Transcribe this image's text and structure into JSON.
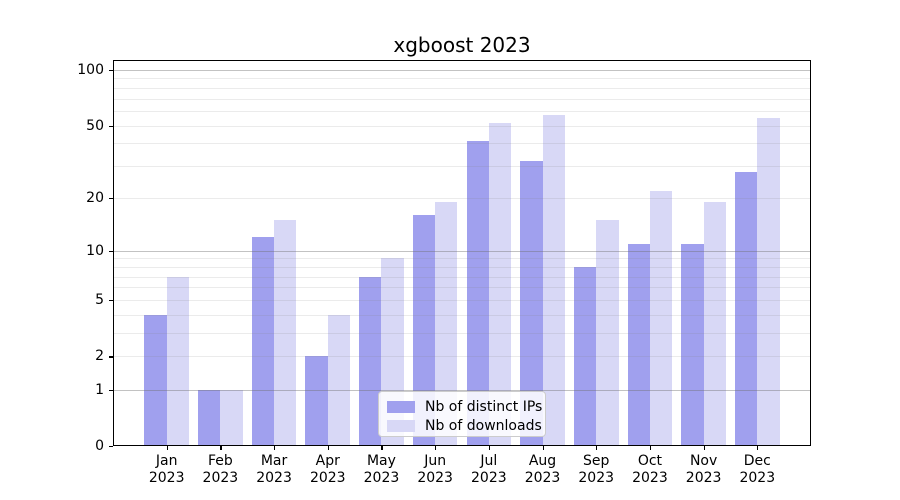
{
  "title": "xgboost 2023",
  "chart_data": {
    "type": "bar",
    "title": "xgboost 2023",
    "categories": [
      "Jan",
      "Feb",
      "Mar",
      "Apr",
      "May",
      "Jun",
      "Jul",
      "Aug",
      "Sep",
      "Oct",
      "Nov",
      "Dec"
    ],
    "year_label": "2023",
    "series": [
      {
        "name": "Nb of distinct IPs",
        "color": "#a0a0ee",
        "values": [
          4,
          1,
          12,
          2,
          7,
          16,
          41,
          32,
          8,
          11,
          11,
          28
        ]
      },
      {
        "name": "Nb of downloads",
        "color": "#d8d8f6",
        "values": [
          7,
          1,
          15,
          4,
          9,
          19,
          52,
          57,
          15,
          22,
          19,
          55
        ]
      }
    ],
    "yscale": "log1p",
    "ylim": [
      0,
      113
    ],
    "yticks": [
      0,
      1,
      2,
      5,
      10,
      20,
      50,
      100
    ],
    "ytick_labels": [
      "0",
      "1",
      "2",
      "5",
      "10",
      "20",
      "50",
      "100"
    ],
    "major_gridlines": [
      1,
      10,
      100
    ],
    "minor_gridlines": [
      2,
      3,
      4,
      5,
      6,
      7,
      8,
      9,
      20,
      30,
      40,
      50,
      60,
      70,
      80,
      90
    ],
    "grid_on": true,
    "legend_position": "lower center",
    "colors": {
      "spine": "#000000",
      "grid_major": "#bcbcbc",
      "grid_minor": "#e9e9e9",
      "background": "#ffffff"
    }
  }
}
